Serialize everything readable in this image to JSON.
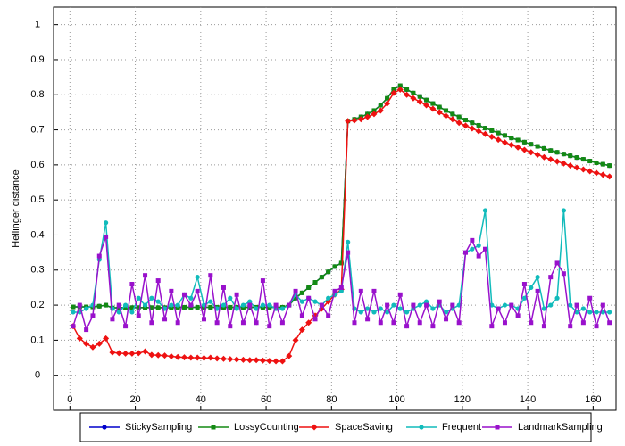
{
  "chart_data": {
    "type": "line",
    "y_label": "Hellinger distance",
    "xlim": [
      -5,
      167
    ],
    "ylim": [
      -0.1,
      1.05
    ],
    "xticks": [
      0,
      20,
      40,
      60,
      80,
      100,
      120,
      140,
      160
    ],
    "yticks": [
      0,
      0.1,
      0.2,
      0.3,
      0.4,
      0.5,
      0.6,
      0.7,
      0.8,
      0.9,
      1
    ],
    "grid": true,
    "legend_position": "bottom",
    "x": [
      1,
      3,
      5,
      7,
      9,
      11,
      13,
      15,
      17,
      19,
      21,
      23,
      25,
      27,
      29,
      31,
      33,
      35,
      37,
      39,
      41,
      43,
      45,
      47,
      49,
      51,
      53,
      55,
      57,
      59,
      61,
      63,
      65,
      67,
      69,
      71,
      73,
      75,
      77,
      79,
      81,
      83,
      85,
      87,
      89,
      91,
      93,
      95,
      97,
      99,
      101,
      103,
      105,
      107,
      109,
      111,
      113,
      115,
      117,
      119,
      121,
      123,
      125,
      127,
      129,
      131,
      133,
      135,
      137,
      139,
      141,
      143,
      145,
      147,
      149,
      151,
      153,
      155,
      157,
      159,
      161,
      163,
      165
    ],
    "series": [
      {
        "name": "StickySampling",
        "color": "#0000cc",
        "marker": "circle",
        "values": [
          0.195,
          0.195,
          0.195,
          0.195,
          0.197,
          0.2,
          0.192,
          0.193,
          0.193,
          0.193,
          0.193,
          0.193,
          0.193,
          0.193,
          0.193,
          0.193,
          0.194,
          0.194,
          0.194,
          0.194,
          0.194,
          0.194,
          0.194,
          0.194,
          0.194,
          0.194,
          0.194,
          0.194,
          0.194,
          0.194,
          0.194,
          0.194,
          0.194,
          0.2,
          0.22,
          0.235,
          0.25,
          0.265,
          0.28,
          0.295,
          0.31,
          0.32,
          0.725,
          0.73,
          0.737,
          0.745,
          0.755,
          0.77,
          0.79,
          0.815,
          0.826,
          0.815,
          0.805,
          0.795,
          0.785,
          0.775,
          0.765,
          0.755,
          0.745,
          0.737,
          0.728,
          0.72,
          0.713,
          0.705,
          0.698,
          0.691,
          0.684,
          0.677,
          0.671,
          0.665,
          0.659,
          0.653,
          0.647,
          0.641,
          0.636,
          0.631,
          0.626,
          0.621,
          0.616,
          0.611,
          0.606,
          0.602,
          0.598
        ]
      },
      {
        "name": "LossyCounting",
        "color": "#138a13",
        "marker": "square",
        "values": [
          0.195,
          0.195,
          0.195,
          0.195,
          0.197,
          0.2,
          0.192,
          0.193,
          0.193,
          0.193,
          0.193,
          0.193,
          0.193,
          0.193,
          0.193,
          0.193,
          0.194,
          0.194,
          0.194,
          0.194,
          0.194,
          0.194,
          0.194,
          0.194,
          0.194,
          0.194,
          0.194,
          0.194,
          0.194,
          0.194,
          0.194,
          0.194,
          0.194,
          0.2,
          0.22,
          0.235,
          0.25,
          0.265,
          0.28,
          0.295,
          0.31,
          0.32,
          0.725,
          0.73,
          0.737,
          0.745,
          0.755,
          0.77,
          0.79,
          0.815,
          0.826,
          0.815,
          0.805,
          0.795,
          0.785,
          0.775,
          0.765,
          0.755,
          0.745,
          0.737,
          0.728,
          0.72,
          0.713,
          0.705,
          0.698,
          0.691,
          0.684,
          0.677,
          0.671,
          0.665,
          0.659,
          0.653,
          0.647,
          0.641,
          0.636,
          0.631,
          0.626,
          0.621,
          0.616,
          0.611,
          0.606,
          0.602,
          0.598
        ]
      },
      {
        "name": "SpaceSaving",
        "color": "#ee1111",
        "marker": "diamond",
        "values": [
          0.14,
          0.105,
          0.09,
          0.08,
          0.09,
          0.105,
          0.065,
          0.063,
          0.062,
          0.062,
          0.063,
          0.068,
          0.058,
          0.057,
          0.056,
          0.054,
          0.052,
          0.051,
          0.05,
          0.05,
          0.049,
          0.05,
          0.048,
          0.047,
          0.046,
          0.045,
          0.044,
          0.043,
          0.043,
          0.042,
          0.041,
          0.04,
          0.04,
          0.055,
          0.1,
          0.13,
          0.15,
          0.17,
          0.19,
          0.21,
          0.23,
          0.245,
          0.725,
          0.727,
          0.73,
          0.737,
          0.745,
          0.755,
          0.775,
          0.805,
          0.815,
          0.8,
          0.79,
          0.78,
          0.77,
          0.76,
          0.75,
          0.74,
          0.73,
          0.72,
          0.712,
          0.704,
          0.696,
          0.688,
          0.68,
          0.672,
          0.664,
          0.657,
          0.65,
          0.643,
          0.636,
          0.629,
          0.622,
          0.616,
          0.61,
          0.604,
          0.598,
          0.592,
          0.587,
          0.582,
          0.577,
          0.572,
          0.567
        ]
      },
      {
        "name": "Frequent",
        "color": "#11bbbb",
        "marker": "circle",
        "values": [
          0.18,
          0.18,
          0.19,
          0.2,
          0.33,
          0.435,
          0.19,
          0.18,
          0.2,
          0.18,
          0.22,
          0.2,
          0.22,
          0.21,
          0.19,
          0.2,
          0.2,
          0.23,
          0.22,
          0.28,
          0.2,
          0.21,
          0.19,
          0.2,
          0.22,
          0.19,
          0.2,
          0.21,
          0.19,
          0.2,
          0.2,
          0.19,
          0.19,
          0.2,
          0.23,
          0.21,
          0.22,
          0.21,
          0.2,
          0.22,
          0.23,
          0.24,
          0.38,
          0.19,
          0.18,
          0.19,
          0.18,
          0.19,
          0.18,
          0.2,
          0.19,
          0.18,
          0.19,
          0.2,
          0.21,
          0.19,
          0.2,
          0.18,
          0.19,
          0.2,
          0.35,
          0.36,
          0.37,
          0.47,
          0.2,
          0.19,
          0.2,
          0.2,
          0.19,
          0.22,
          0.25,
          0.28,
          0.19,
          0.2,
          0.22,
          0.47,
          0.2,
          0.18,
          0.19,
          0.18,
          0.18,
          0.18,
          0.18
        ]
      },
      {
        "name": "LandmarkSampling",
        "color": "#9911cc",
        "marker": "square",
        "values": [
          0.14,
          0.2,
          0.13,
          0.17,
          0.34,
          0.395,
          0.16,
          0.2,
          0.14,
          0.26,
          0.17,
          0.285,
          0.15,
          0.27,
          0.16,
          0.24,
          0.15,
          0.23,
          0.2,
          0.24,
          0.16,
          0.285,
          0.15,
          0.25,
          0.14,
          0.23,
          0.15,
          0.2,
          0.15,
          0.27,
          0.14,
          0.2,
          0.15,
          0.2,
          0.24,
          0.17,
          0.22,
          0.16,
          0.2,
          0.17,
          0.24,
          0.25,
          0.35,
          0.15,
          0.24,
          0.16,
          0.24,
          0.15,
          0.2,
          0.15,
          0.23,
          0.14,
          0.2,
          0.15,
          0.2,
          0.14,
          0.21,
          0.16,
          0.2,
          0.15,
          0.35,
          0.385,
          0.34,
          0.36,
          0.14,
          0.19,
          0.15,
          0.2,
          0.17,
          0.26,
          0.15,
          0.24,
          0.14,
          0.28,
          0.32,
          0.29,
          0.14,
          0.2,
          0.15,
          0.22,
          0.14,
          0.2,
          0.15
        ]
      }
    ]
  }
}
